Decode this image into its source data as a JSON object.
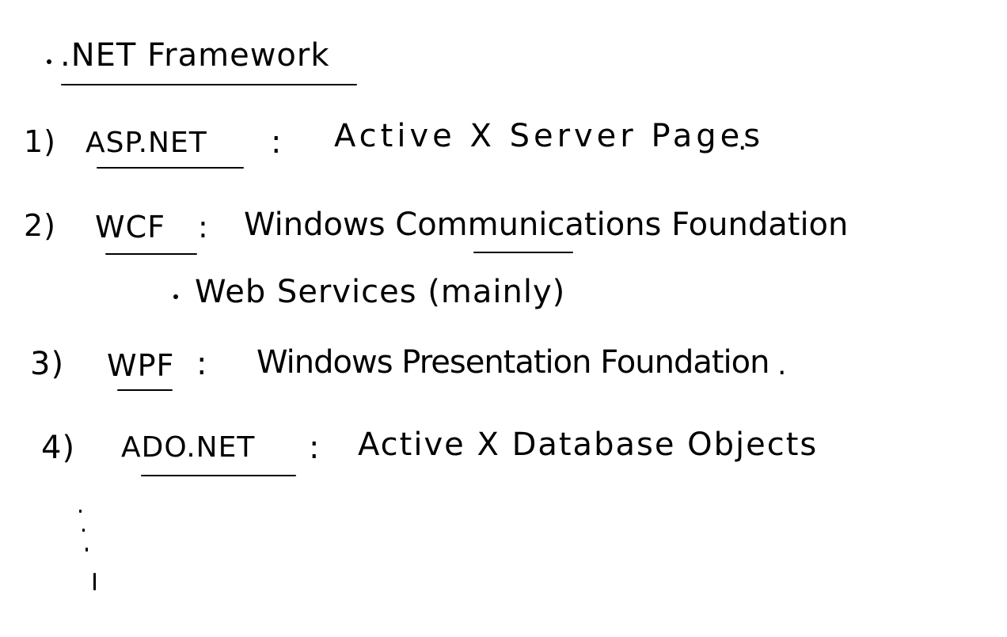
{
  "heading": {
    "bullet": "•",
    "text": ".NET Framework"
  },
  "items": [
    {
      "number": "1)",
      "term": "ASP.NET",
      "separator": ":",
      "definition": "Active X Server Pages",
      "end": "."
    },
    {
      "number": "2)",
      "term": "WCF",
      "separator": ":",
      "definition": "Windows Communications Foundation",
      "sub_bullet": {
        "marker": "•",
        "text": "Web Services (mainly)"
      }
    },
    {
      "number": "3)",
      "term": "WPF",
      "separator": ":",
      "definition": "Windows Presentation Foundation",
      "end": "."
    },
    {
      "number": "4)",
      "term": "ADO.NET",
      "separator": ":",
      "definition": "Active X Database Objects"
    }
  ]
}
